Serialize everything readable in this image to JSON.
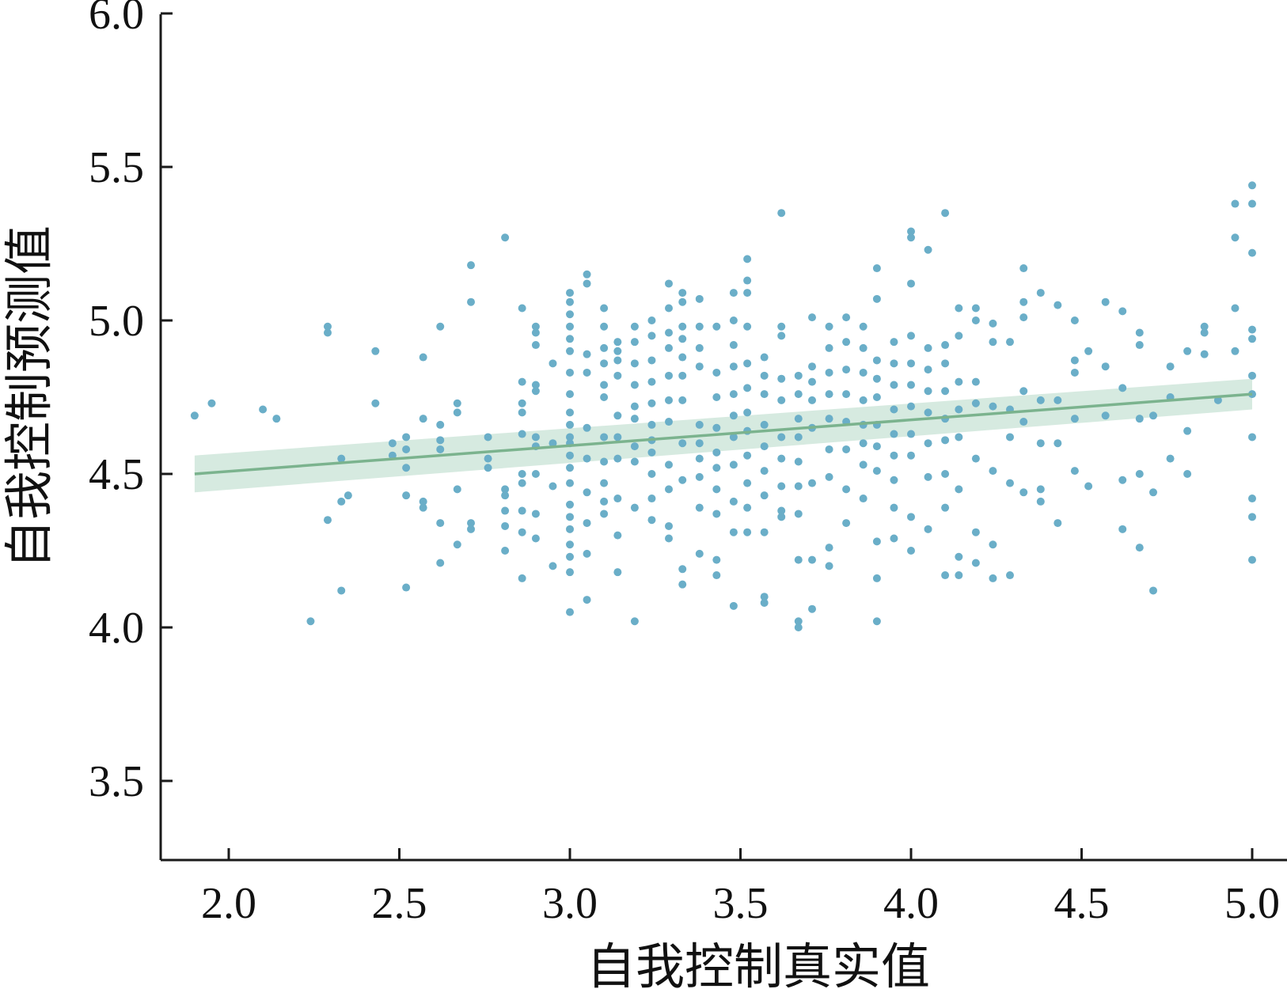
{
  "chart_data": {
    "type": "scatter",
    "title": "",
    "xlabel": "自我控制真实值",
    "ylabel": "自我控制预测值",
    "xlim": [
      1.9,
      5.1
    ],
    "ylim": [
      3.25,
      6.0
    ],
    "xticks": [
      "2.0",
      "2.5",
      "3.0",
      "3.5",
      "4.0",
      "4.5",
      "5.0"
    ],
    "yticks": [
      "3.5",
      "4.0",
      "4.5",
      "5.0",
      "5.5",
      "6.0"
    ],
    "grid": false,
    "legend": "none",
    "point_color": "#6aaec8",
    "line_color": "#7bb38e",
    "band_color": "#cfe6da",
    "regression": {
      "x": [
        1.9,
        5.0
      ],
      "y": [
        4.5,
        4.76
      ],
      "ci_lower": [
        4.44,
        4.71
      ],
      "ci_upper": [
        4.56,
        4.81
      ]
    },
    "points": {
      "x": [
        1.9,
        1.95,
        2.1,
        2.14,
        2.24,
        2.29,
        2.29,
        2.29,
        2.33,
        2.33,
        2.33,
        2.35,
        2.43,
        2.43,
        2.48,
        2.48,
        2.52,
        2.52,
        2.52,
        2.52,
        2.52,
        2.57,
        2.57,
        2.57,
        2.57,
        2.62,
        2.62,
        2.62,
        2.62,
        2.62,
        2.62,
        2.67,
        2.67,
        2.67,
        2.67,
        2.71,
        2.71,
        2.71,
        2.71,
        2.76,
        2.76,
        2.76,
        2.81,
        2.81,
        2.81,
        2.81,
        2.81,
        2.81,
        2.86,
        2.86,
        2.86,
        2.86,
        2.86,
        2.86,
        2.86,
        2.86,
        2.86,
        2.86,
        2.9,
        2.9,
        2.9,
        2.9,
        2.9,
        2.9,
        2.9,
        2.9,
        2.9,
        2.9,
        2.95,
        2.95,
        2.95,
        2.95,
        3.0,
        3.0,
        3.0,
        3.0,
        3.0,
        3.0,
        3.0,
        3.0,
        3.0,
        3.0,
        3.0,
        3.0,
        3.0,
        3.0,
        3.0,
        3.0,
        3.0,
        3.0,
        3.0,
        3.0,
        3.0,
        3.0,
        3.05,
        3.05,
        3.05,
        3.05,
        3.05,
        3.05,
        3.05,
        3.05,
        3.05,
        3.05,
        3.1,
        3.1,
        3.1,
        3.1,
        3.1,
        3.1,
        3.1,
        3.1,
        3.1,
        3.1,
        3.1,
        3.14,
        3.14,
        3.14,
        3.14,
        3.14,
        3.14,
        3.14,
        3.14,
        3.14,
        3.14,
        3.19,
        3.19,
        3.19,
        3.19,
        3.19,
        3.19,
        3.19,
        3.19,
        3.19,
        3.19,
        3.24,
        3.24,
        3.24,
        3.24,
        3.24,
        3.24,
        3.24,
        3.24,
        3.24,
        3.24,
        3.24,
        3.29,
        3.29,
        3.29,
        3.29,
        3.29,
        3.29,
        3.29,
        3.29,
        3.29,
        3.29,
        3.29,
        3.33,
        3.33,
        3.33,
        3.33,
        3.33,
        3.33,
        3.33,
        3.33,
        3.33,
        3.33,
        3.33,
        3.38,
        3.38,
        3.38,
        3.38,
        3.38,
        3.38,
        3.38,
        3.38,
        3.38,
        3.38,
        3.43,
        3.43,
        3.43,
        3.43,
        3.43,
        3.43,
        3.43,
        3.43,
        3.43,
        3.43,
        3.48,
        3.48,
        3.48,
        3.48,
        3.48,
        3.48,
        3.48,
        3.48,
        3.48,
        3.48,
        3.48,
        3.52,
        3.52,
        3.52,
        3.52,
        3.52,
        3.52,
        3.52,
        3.52,
        3.52,
        3.52,
        3.52,
        3.52,
        3.57,
        3.57,
        3.57,
        3.57,
        3.57,
        3.57,
        3.57,
        3.57,
        3.57,
        3.57,
        3.62,
        3.62,
        3.62,
        3.62,
        3.62,
        3.62,
        3.62,
        3.62,
        3.62,
        3.62,
        3.67,
        3.67,
        3.67,
        3.67,
        3.67,
        3.67,
        3.67,
        3.67,
        3.67,
        3.67,
        3.71,
        3.71,
        3.71,
        3.71,
        3.71,
        3.71,
        3.71,
        3.71,
        3.76,
        3.76,
        3.76,
        3.76,
        3.76,
        3.76,
        3.76,
        3.76,
        3.76,
        3.81,
        3.81,
        3.81,
        3.81,
        3.81,
        3.81,
        3.81,
        3.81,
        3.86,
        3.86,
        3.86,
        3.86,
        3.86,
        3.86,
        3.86,
        3.86,
        3.9,
        3.9,
        3.9,
        3.9,
        3.9,
        3.9,
        3.9,
        3.9,
        3.9,
        3.9,
        3.9,
        3.95,
        3.95,
        3.95,
        3.95,
        3.95,
        3.95,
        3.95,
        3.95,
        3.95,
        4.0,
        4.0,
        4.0,
        4.0,
        4.0,
        4.0,
        4.0,
        4.0,
        4.0,
        4.0,
        4.0,
        4.05,
        4.05,
        4.05,
        4.05,
        4.05,
        4.05,
        4.05,
        4.05,
        4.1,
        4.1,
        4.1,
        4.1,
        4.1,
        4.1,
        4.1,
        4.1,
        4.1,
        4.14,
        4.14,
        4.14,
        4.14,
        4.14,
        4.14,
        4.14,
        4.14,
        4.19,
        4.19,
        4.19,
        4.19,
        4.19,
        4.19,
        4.19,
        4.24,
        4.24,
        4.24,
        4.24,
        4.24,
        4.24,
        4.29,
        4.29,
        4.29,
        4.29,
        4.29,
        4.33,
        4.33,
        4.33,
        4.33,
        4.33,
        4.33,
        4.38,
        4.38,
        4.38,
        4.38,
        4.38,
        4.43,
        4.43,
        4.43,
        4.43,
        4.48,
        4.48,
        4.48,
        4.48,
        4.48,
        4.52,
        4.52,
        4.57,
        4.57,
        4.57,
        4.62,
        4.62,
        4.62,
        4.62,
        4.67,
        4.67,
        4.67,
        4.67,
        4.67,
        4.71,
        4.71,
        4.71,
        4.76,
        4.76,
        4.76,
        4.81,
        4.81,
        4.81,
        4.86,
        4.86,
        4.86,
        4.9,
        4.95,
        4.95,
        4.95,
        4.95,
        5.0,
        5.0,
        5.0,
        5.0,
        5.0,
        5.0,
        5.0,
        5.0,
        5.0,
        5.0,
        5.0
      ],
      "y": [
        4.69,
        4.73,
        4.71,
        4.68,
        4.02,
        4.98,
        4.96,
        4.35,
        4.55,
        4.41,
        4.12,
        4.43,
        4.9,
        4.73,
        4.6,
        4.56,
        4.62,
        4.58,
        4.52,
        4.43,
        4.13,
        4.88,
        4.68,
        4.41,
        4.39,
        4.98,
        4.66,
        4.61,
        4.34,
        4.21,
        4.58,
        4.73,
        4.7,
        4.45,
        4.27,
        5.18,
        5.06,
        4.34,
        4.32,
        4.62,
        4.55,
        4.52,
        5.27,
        4.45,
        4.43,
        4.38,
        4.33,
        4.25,
        5.04,
        4.8,
        4.73,
        4.7,
        4.63,
        4.5,
        4.38,
        4.31,
        4.16,
        4.47,
        4.98,
        4.96,
        4.92,
        4.79,
        4.77,
        4.62,
        4.59,
        4.5,
        4.37,
        4.29,
        4.86,
        4.6,
        4.46,
        4.2,
        5.09,
        5.06,
        5.02,
        4.98,
        4.94,
        4.9,
        4.83,
        4.76,
        4.7,
        4.66,
        4.62,
        4.56,
        4.52,
        4.47,
        4.4,
        4.36,
        4.32,
        4.27,
        4.23,
        4.18,
        4.05,
        4.6,
        5.15,
        5.12,
        4.89,
        4.83,
        4.65,
        4.55,
        4.44,
        4.34,
        4.24,
        4.09,
        5.04,
        4.98,
        4.91,
        4.86,
        4.79,
        4.75,
        4.62,
        4.54,
        4.47,
        4.41,
        4.37,
        4.93,
        4.9,
        4.87,
        4.82,
        4.69,
        4.62,
        4.55,
        4.42,
        4.3,
        4.18,
        4.98,
        4.93,
        4.86,
        4.79,
        4.72,
        4.68,
        4.59,
        4.54,
        4.39,
        4.02,
        5.0,
        4.95,
        4.87,
        4.8,
        4.73,
        4.66,
        4.61,
        4.57,
        4.5,
        4.42,
        4.35,
        5.12,
        5.04,
        4.96,
        4.91,
        4.82,
        4.74,
        4.67,
        4.53,
        4.45,
        4.33,
        4.29,
        5.09,
        5.06,
        4.98,
        4.94,
        4.88,
        4.82,
        4.74,
        4.6,
        4.48,
        4.19,
        4.14,
        5.07,
        4.98,
        4.91,
        4.85,
        4.66,
        4.6,
        4.55,
        4.49,
        4.39,
        4.24,
        4.98,
        4.83,
        4.75,
        4.65,
        4.57,
        4.52,
        4.45,
        4.37,
        4.22,
        4.17,
        5.09,
        5.0,
        4.92,
        4.85,
        4.76,
        4.69,
        4.62,
        4.53,
        4.41,
        4.31,
        4.07,
        5.2,
        5.13,
        5.09,
        4.98,
        4.86,
        4.78,
        4.7,
        4.64,
        4.56,
        4.47,
        4.39,
        4.31,
        4.88,
        4.82,
        4.76,
        4.66,
        4.59,
        4.51,
        4.43,
        4.31,
        4.1,
        4.08,
        5.35,
        4.98,
        4.95,
        4.81,
        4.74,
        4.62,
        4.55,
        4.46,
        4.38,
        4.36,
        4.82,
        4.76,
        4.68,
        4.62,
        4.54,
        4.46,
        4.37,
        4.22,
        4.02,
        4.0,
        5.01,
        4.85,
        4.8,
        4.74,
        4.65,
        4.47,
        4.22,
        4.06,
        4.98,
        4.91,
        4.83,
        4.76,
        4.68,
        4.58,
        4.49,
        4.26,
        4.2,
        5.01,
        4.93,
        4.84,
        4.76,
        4.67,
        4.58,
        4.45,
        4.34,
        4.98,
        4.91,
        4.83,
        4.74,
        4.66,
        4.6,
        4.53,
        4.42,
        5.17,
        5.07,
        4.87,
        4.81,
        4.75,
        4.66,
        4.59,
        4.51,
        4.28,
        4.16,
        4.02,
        4.93,
        4.86,
        4.79,
        4.71,
        4.63,
        4.56,
        4.48,
        4.39,
        4.29,
        5.29,
        5.27,
        5.12,
        4.95,
        4.86,
        4.79,
        4.72,
        4.63,
        4.56,
        4.36,
        4.25,
        5.23,
        4.91,
        4.84,
        4.77,
        4.7,
        4.6,
        4.49,
        4.32,
        5.35,
        4.92,
        4.86,
        4.77,
        4.68,
        4.61,
        4.5,
        4.39,
        4.17,
        5.04,
        4.95,
        4.8,
        4.71,
        4.62,
        4.45,
        4.23,
        4.17,
        5.04,
        5.0,
        4.8,
        4.73,
        4.55,
        4.31,
        4.21,
        4.99,
        4.93,
        4.72,
        4.51,
        4.27,
        4.16,
        4.93,
        4.71,
        4.62,
        4.47,
        4.17,
        5.17,
        5.06,
        5.01,
        4.77,
        4.67,
        4.44,
        5.09,
        4.74,
        4.6,
        4.45,
        4.41,
        5.05,
        4.74,
        4.6,
        4.34,
        5.0,
        4.87,
        4.83,
        4.68,
        4.51,
        4.9,
        4.46,
        5.06,
        4.85,
        4.69,
        5.03,
        4.78,
        4.48,
        4.32,
        4.96,
        4.92,
        4.68,
        4.5,
        4.26,
        4.69,
        4.44,
        4.12,
        4.85,
        4.55,
        4.75,
        4.9,
        4.64,
        4.5,
        4.98,
        4.96,
        4.89,
        4.74,
        5.38,
        5.27,
        5.04,
        4.9,
        5.44,
        5.38,
        5.22,
        4.97,
        4.94,
        4.82,
        4.76,
        4.62,
        4.42,
        4.36,
        4.22
      ]
    }
  }
}
